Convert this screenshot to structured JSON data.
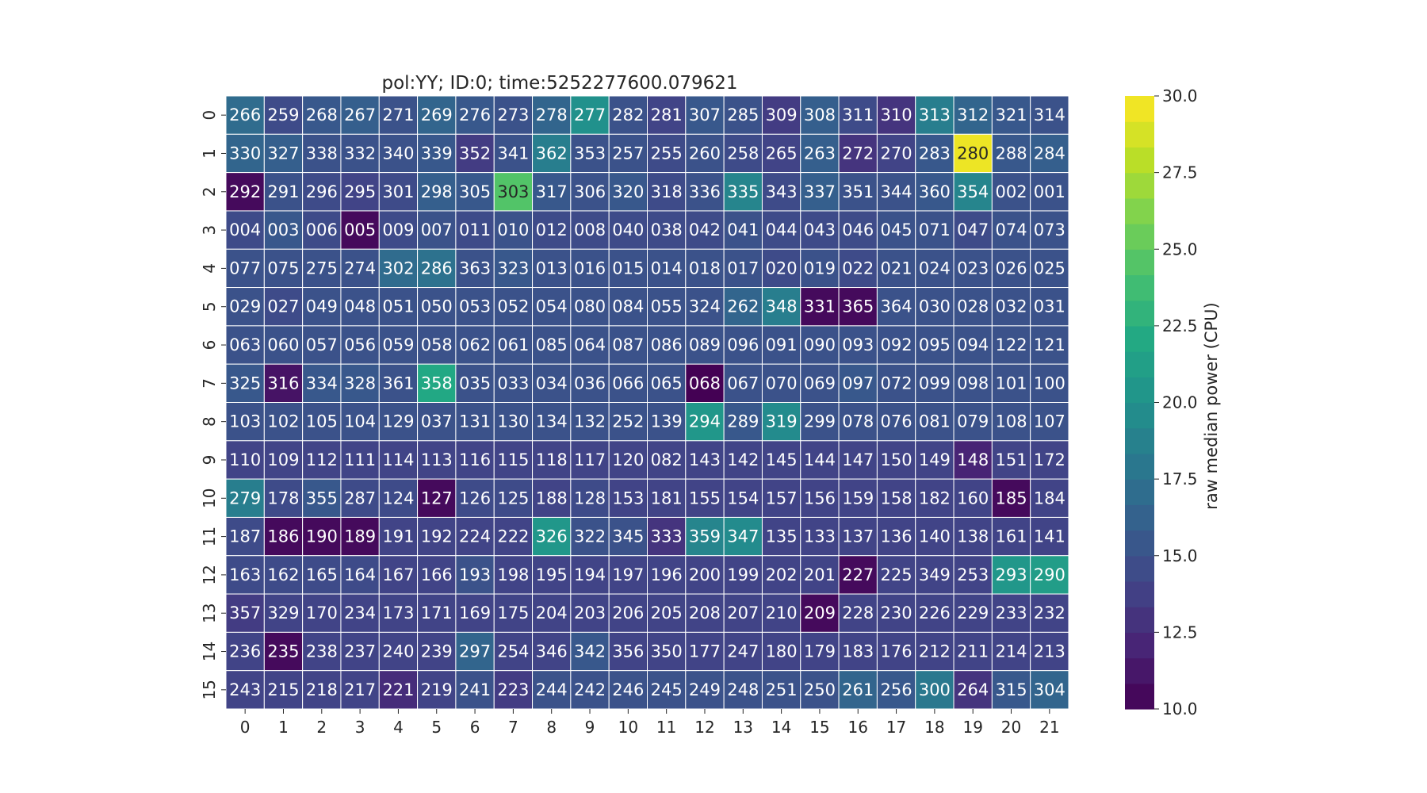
{
  "chart_data": {
    "type": "heatmap",
    "title": "pol:YY; ID:0; time:5252277600.079621",
    "colorbar": {
      "label": "raw median power (CPU)",
      "min": 10.0,
      "max": 30.0,
      "ticks": [
        "10.0",
        "12.5",
        "15.0",
        "17.5",
        "20.0",
        "22.5",
        "25.0",
        "27.5",
        "30.0"
      ],
      "colormap": "viridis"
    },
    "x_ticks": [
      "0",
      "1",
      "2",
      "3",
      "4",
      "5",
      "6",
      "7",
      "8",
      "9",
      "10",
      "11",
      "12",
      "13",
      "14",
      "15",
      "16",
      "17",
      "18",
      "19",
      "20",
      "21"
    ],
    "y_ticks": [
      "0",
      "1",
      "2",
      "3",
      "4",
      "5",
      "6",
      "7",
      "8",
      "9",
      "10",
      "11",
      "12",
      "13",
      "14",
      "15"
    ],
    "annotations": [
      [
        "266",
        "259",
        "268",
        "267",
        "271",
        "269",
        "276",
        "273",
        "278",
        "277",
        "282",
        "281",
        "307",
        "285",
        "309",
        "308",
        "311",
        "310",
        "313",
        "312",
        "321",
        "314"
      ],
      [
        "330",
        "327",
        "338",
        "332",
        "340",
        "339",
        "352",
        "341",
        "362",
        "353",
        "257",
        "255",
        "260",
        "258",
        "265",
        "263",
        "272",
        "270",
        "283",
        "280",
        "288",
        "284"
      ],
      [
        "292",
        "291",
        "296",
        "295",
        "301",
        "298",
        "305",
        "303",
        "317",
        "306",
        "320",
        "318",
        "336",
        "335",
        "343",
        "337",
        "351",
        "344",
        "360",
        "354",
        "002",
        "001"
      ],
      [
        "004",
        "003",
        "006",
        "005",
        "009",
        "007",
        "011",
        "010",
        "012",
        "008",
        "040",
        "038",
        "042",
        "041",
        "044",
        "043",
        "046",
        "045",
        "071",
        "047",
        "074",
        "073"
      ],
      [
        "077",
        "075",
        "275",
        "274",
        "302",
        "286",
        "363",
        "323",
        "013",
        "016",
        "015",
        "014",
        "018",
        "017",
        "020",
        "019",
        "022",
        "021",
        "024",
        "023",
        "026",
        "025"
      ],
      [
        "029",
        "027",
        "049",
        "048",
        "051",
        "050",
        "053",
        "052",
        "054",
        "080",
        "084",
        "055",
        "324",
        "262",
        "348",
        "331",
        "365",
        "364",
        "030",
        "028",
        "032",
        "031"
      ],
      [
        "063",
        "060",
        "057",
        "056",
        "059",
        "058",
        "062",
        "061",
        "085",
        "064",
        "087",
        "086",
        "089",
        "096",
        "091",
        "090",
        "093",
        "092",
        "095",
        "094",
        "122",
        "121"
      ],
      [
        "325",
        "316",
        "334",
        "328",
        "361",
        "358",
        "035",
        "033",
        "034",
        "036",
        "066",
        "065",
        "068",
        "067",
        "070",
        "069",
        "097",
        "072",
        "099",
        "098",
        "101",
        "100"
      ],
      [
        "103",
        "102",
        "105",
        "104",
        "129",
        "037",
        "131",
        "130",
        "134",
        "132",
        "252",
        "139",
        "294",
        "289",
        "319",
        "299",
        "078",
        "076",
        "081",
        "079",
        "108",
        "107"
      ],
      [
        "110",
        "109",
        "112",
        "111",
        "114",
        "113",
        "116",
        "115",
        "118",
        "117",
        "120",
        "082",
        "143",
        "142",
        "145",
        "144",
        "147",
        "150",
        "149",
        "148",
        "151",
        "172"
      ],
      [
        "279",
        "178",
        "355",
        "287",
        "124",
        "127",
        "126",
        "125",
        "188",
        "128",
        "153",
        "181",
        "155",
        "154",
        "157",
        "156",
        "159",
        "158",
        "182",
        "160",
        "185",
        "184"
      ],
      [
        "187",
        "186",
        "190",
        "189",
        "191",
        "192",
        "224",
        "222",
        "326",
        "322",
        "345",
        "333",
        "359",
        "347",
        "135",
        "133",
        "137",
        "136",
        "140",
        "138",
        "161",
        "141"
      ],
      [
        "163",
        "162",
        "165",
        "164",
        "167",
        "166",
        "193",
        "198",
        "195",
        "194",
        "197",
        "196",
        "200",
        "199",
        "202",
        "201",
        "227",
        "225",
        "349",
        "253",
        "293",
        "290"
      ],
      [
        "357",
        "329",
        "170",
        "234",
        "173",
        "171",
        "169",
        "175",
        "204",
        "203",
        "206",
        "205",
        "208",
        "207",
        "210",
        "209",
        "228",
        "230",
        "226",
        "229",
        "233",
        "232"
      ],
      [
        "236",
        "235",
        "238",
        "237",
        "240",
        "239",
        "297",
        "254",
        "346",
        "342",
        "356",
        "350",
        "177",
        "247",
        "180",
        "179",
        "183",
        "176",
        "212",
        "211",
        "214",
        "213"
      ],
      [
        "243",
        "215",
        "218",
        "217",
        "221",
        "219",
        "241",
        "223",
        "244",
        "242",
        "246",
        "245",
        "249",
        "248",
        "251",
        "250",
        "261",
        "256",
        "300",
        "264",
        "315",
        "304"
      ]
    ],
    "values": [
      [
        17.0,
        14.5,
        15.5,
        16.0,
        15.0,
        16.5,
        15.5,
        15.0,
        16.5,
        20.0,
        15.0,
        14.0,
        15.5,
        15.0,
        13.5,
        16.0,
        14.5,
        13.0,
        18.5,
        16.5,
        15.5,
        15.0
      ],
      [
        16.5,
        16.0,
        15.0,
        15.0,
        15.0,
        15.5,
        13.5,
        15.0,
        18.5,
        15.0,
        15.0,
        14.5,
        15.0,
        14.5,
        14.0,
        16.0,
        13.0,
        14.0,
        15.5,
        29.5,
        15.5,
        16.0
      ],
      [
        10.5,
        15.0,
        14.5,
        14.0,
        14.5,
        16.0,
        15.5,
        24.5,
        15.5,
        15.0,
        15.5,
        14.5,
        15.0,
        19.0,
        14.5,
        16.0,
        15.0,
        15.0,
        15.5,
        19.0,
        15.0,
        15.0
      ],
      [
        14.5,
        15.5,
        14.5,
        10.5,
        14.5,
        15.0,
        14.5,
        15.0,
        14.5,
        14.5,
        14.5,
        14.5,
        14.5,
        15.0,
        14.5,
        14.5,
        14.5,
        15.0,
        15.0,
        14.5,
        15.0,
        15.0
      ],
      [
        15.0,
        15.0,
        15.0,
        15.0,
        17.0,
        17.5,
        15.0,
        15.5,
        15.0,
        15.0,
        15.0,
        15.0,
        15.0,
        15.0,
        14.5,
        15.0,
        14.5,
        15.0,
        15.0,
        15.0,
        15.0,
        15.0
      ],
      [
        15.0,
        14.5,
        15.0,
        15.0,
        15.0,
        15.0,
        15.0,
        15.0,
        15.0,
        15.0,
        15.0,
        15.0,
        15.0,
        16.5,
        18.5,
        10.5,
        10.5,
        15.0,
        15.0,
        15.0,
        15.0,
        15.0
      ],
      [
        15.0,
        15.0,
        15.0,
        15.0,
        15.0,
        15.0,
        15.0,
        15.0,
        15.0,
        15.0,
        15.0,
        15.0,
        15.0,
        15.0,
        15.0,
        15.0,
        15.0,
        15.0,
        15.0,
        15.0,
        15.0,
        15.0
      ],
      [
        15.5,
        11.0,
        15.5,
        15.5,
        15.0,
        22.0,
        15.0,
        15.0,
        15.0,
        15.0,
        15.0,
        15.0,
        10.0,
        15.0,
        15.0,
        15.0,
        15.5,
        15.0,
        15.0,
        15.0,
        15.0,
        15.0
      ],
      [
        15.0,
        15.0,
        15.0,
        15.0,
        15.0,
        15.0,
        15.0,
        15.0,
        15.0,
        15.0,
        15.0,
        15.0,
        20.5,
        15.5,
        19.5,
        15.0,
        15.0,
        15.0,
        15.0,
        15.0,
        15.0,
        15.0
      ],
      [
        14.0,
        14.0,
        14.0,
        14.0,
        14.0,
        14.0,
        14.0,
        14.0,
        14.0,
        14.0,
        14.0,
        14.0,
        14.0,
        14.0,
        14.0,
        14.0,
        14.0,
        14.0,
        14.0,
        12.0,
        14.0,
        14.0
      ],
      [
        18.5,
        14.5,
        15.5,
        14.5,
        14.5,
        10.5,
        14.5,
        14.5,
        14.0,
        14.5,
        14.0,
        14.0,
        14.0,
        14.0,
        14.0,
        14.0,
        14.0,
        14.0,
        14.0,
        14.0,
        10.5,
        14.0
      ],
      [
        14.5,
        10.5,
        10.5,
        10.5,
        14.0,
        14.0,
        14.0,
        14.0,
        20.5,
        15.0,
        15.0,
        13.0,
        19.0,
        19.5,
        14.0,
        14.0,
        14.0,
        14.0,
        14.0,
        14.0,
        14.0,
        14.0
      ],
      [
        14.5,
        14.5,
        14.5,
        14.5,
        14.0,
        14.0,
        15.0,
        14.0,
        14.0,
        14.0,
        14.0,
        14.0,
        14.0,
        14.0,
        14.0,
        14.0,
        10.5,
        14.0,
        14.0,
        14.0,
        20.5,
        21.0
      ],
      [
        13.5,
        14.0,
        14.0,
        14.0,
        14.0,
        14.0,
        14.0,
        14.0,
        14.0,
        14.0,
        14.0,
        14.0,
        14.0,
        14.0,
        14.0,
        10.5,
        14.0,
        14.0,
        14.0,
        14.0,
        14.0,
        14.0
      ],
      [
        14.0,
        10.5,
        14.0,
        14.0,
        14.0,
        14.0,
        16.5,
        14.0,
        14.0,
        15.5,
        14.0,
        14.0,
        14.0,
        14.0,
        14.0,
        14.0,
        14.0,
        14.0,
        14.0,
        14.0,
        14.0,
        14.0
      ],
      [
        14.0,
        14.0,
        14.0,
        14.0,
        12.5,
        14.0,
        15.0,
        13.5,
        15.0,
        15.0,
        15.0,
        15.0,
        15.0,
        15.0,
        15.0,
        15.0,
        16.5,
        15.5,
        18.0,
        13.0,
        15.5,
        16.5
      ]
    ]
  }
}
